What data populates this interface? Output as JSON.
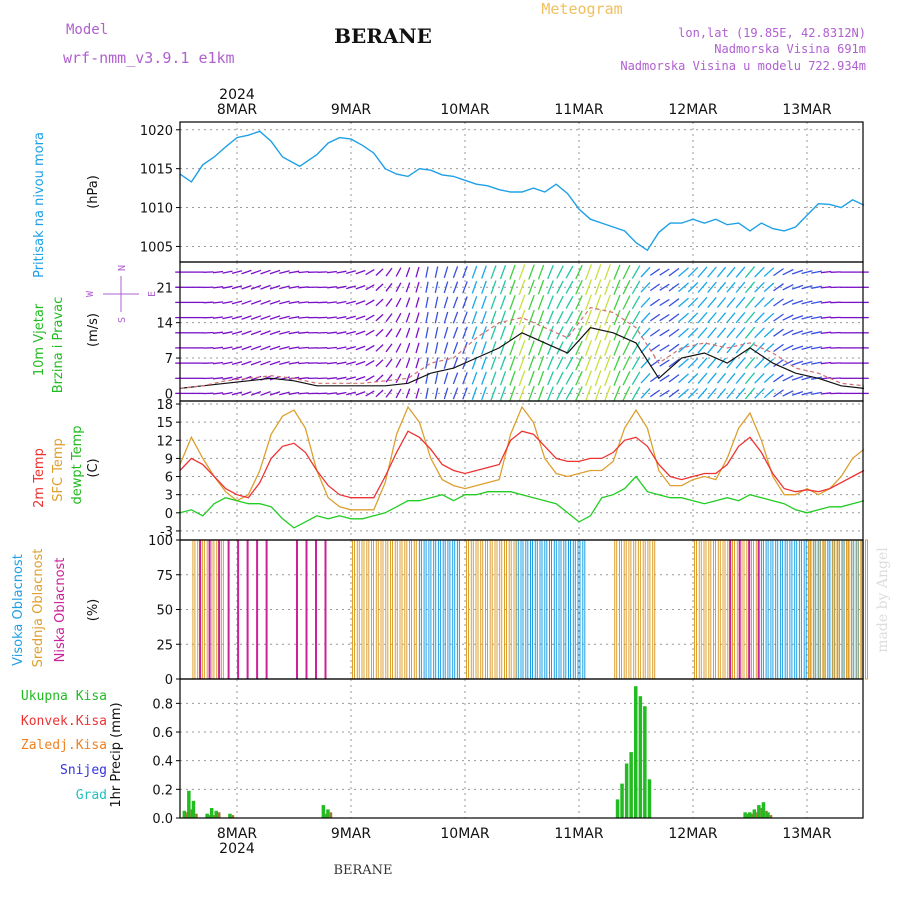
{
  "header": {
    "model_label": "Model",
    "model_name": "wrf-nmm_v3.9.1 e1km",
    "title": "BERANE",
    "product": "Meteogram",
    "coords": "lon,lat (19.85E, 42.8312N)",
    "elevation": "Nadmorska Visina 691m",
    "model_elevation": "Nadmorska Visina u modelu 722.934m"
  },
  "time_axis": {
    "year": "2024",
    "days": [
      "8MAR",
      "9MAR",
      "10MAR",
      "11MAR",
      "12MAR",
      "13MAR"
    ]
  },
  "footer": {
    "station": "BERANE",
    "watermark": "made by Angel"
  },
  "colors": {
    "pressure": "#1ea0e6",
    "temp2m": "#ee3333",
    "sfc": "#dda030",
    "dewpt": "#22cc22",
    "high_cloud": "#1ea0e6",
    "mid_cloud": "#dda030",
    "low_cloud": "#cc2299",
    "ukupna": "#22bb22",
    "konvek": "#ee3333",
    "zaledj": "#f08020",
    "snijeg": "#3333dd",
    "grad": "#22c0c0",
    "wind_label": "#22bb22",
    "wind_sub": "#b060d0"
  },
  "panels": {
    "pressure": {
      "label": "Pritisak na nivou mora",
      "unit": "(hPa)"
    },
    "wind": {
      "label1": "10m Vjetar",
      "label2": "Brzina i Pravac",
      "unit": "(m/s)",
      "compass": {
        "n": "N",
        "s": "S",
        "w": "W",
        "e": "E"
      }
    },
    "temp": {
      "l1": "2m Temp",
      "l2": "SFC Temp",
      "l3": "dewpt Temp",
      "unit": "(C)"
    },
    "cloud": {
      "l1": "Visoka Oblacnost",
      "l2": "Srednja Oblacnost",
      "l3": "Niska Oblacnost",
      "unit": "(%)"
    },
    "precip": {
      "unit": "1hr Precip (mm)",
      "legend": [
        "Ukupna Kisa",
        "Konvek.Kisa",
        "Zaledj.Kisa",
        "Snijeg",
        "Grad"
      ]
    }
  },
  "chart_data": [
    {
      "type": "line",
      "name": "pressure",
      "ylabel": "(hPa)",
      "ylim": [
        1003,
        1021
      ],
      "yticks": [
        1005,
        1010,
        1015,
        1020
      ],
      "x_days": [
        -0.5,
        -0.4,
        -0.3,
        -0.2,
        -0.1,
        0.0,
        0.1,
        0.2,
        0.3,
        0.4,
        0.55,
        0.7,
        0.8,
        0.9,
        1.0,
        1.1,
        1.2,
        1.3,
        1.4,
        1.5,
        1.6,
        1.7,
        1.8,
        1.9,
        2.0,
        2.1,
        2.2,
        2.3,
        2.4,
        2.5,
        2.6,
        2.7,
        2.8,
        2.9,
        3.0,
        3.1,
        3.2,
        3.3,
        3.4,
        3.5,
        3.6,
        3.7,
        3.8,
        3.9,
        4.0,
        4.1,
        4.2,
        4.3,
        4.4,
        4.5,
        4.6,
        4.7,
        4.8,
        4.9,
        5.0,
        5.1,
        5.2,
        5.3,
        5.4,
        5.5
      ],
      "y": [
        1014.3,
        1013.3,
        1015.5,
        1016.5,
        1017.8,
        1019.0,
        1019.3,
        1019.8,
        1018.5,
        1016.5,
        1015.3,
        1016.8,
        1018.3,
        1019.0,
        1018.8,
        1018.0,
        1017.0,
        1015.0,
        1014.3,
        1014.0,
        1015.0,
        1014.8,
        1014.2,
        1014.0,
        1013.5,
        1013.0,
        1012.8,
        1012.3,
        1012.0,
        1012.0,
        1012.5,
        1012.0,
        1013.0,
        1011.8,
        1009.8,
        1008.5,
        1008.0,
        1007.5,
        1007.0,
        1005.5,
        1004.5,
        1006.8,
        1008.0,
        1008.0,
        1008.5,
        1008.0,
        1008.5,
        1007.8,
        1008.0,
        1007.0,
        1008.0,
        1007.3,
        1007.0,
        1007.5,
        1009.0,
        1010.5,
        1010.4,
        1010.0,
        1011.0,
        1010.3
      ]
    },
    {
      "type": "line",
      "name": "wind",
      "ylabel": "(m/s)",
      "ylim": [
        -1.5,
        26
      ],
      "yticks": [
        0,
        7,
        14,
        21
      ],
      "x_days": [
        -0.5,
        -0.3,
        -0.1,
        0.1,
        0.3,
        0.5,
        0.7,
        0.9,
        1.1,
        1.3,
        1.5,
        1.7,
        1.9,
        2.1,
        2.3,
        2.5,
        2.7,
        2.9,
        3.1,
        3.3,
        3.5,
        3.7,
        3.9,
        4.1,
        4.3,
        4.5,
        4.7,
        4.9,
        5.1,
        5.3,
        5.5
      ],
      "speed": [
        1.0,
        1.5,
        2.0,
        2.5,
        3.0,
        2.5,
        1.5,
        1.5,
        1.5,
        1.5,
        2.0,
        4.0,
        5.0,
        7.0,
        9.0,
        12.0,
        10.0,
        8.0,
        13.0,
        12.0,
        10.0,
        3.0,
        7.0,
        8.0,
        6.0,
        9.0,
        6.0,
        4.0,
        3.0,
        1.5,
        1.0
      ],
      "gust": [
        1.0,
        1.5,
        2.5,
        3.0,
        3.5,
        3.0,
        2.0,
        2.0,
        2.0,
        2.5,
        3.0,
        6.0,
        7.0,
        11.0,
        14.0,
        15.0,
        13.0,
        11.0,
        17.0,
        16.0,
        13.0,
        6.0,
        9.0,
        10.0,
        9.0,
        10.0,
        8.0,
        5.0,
        4.0,
        2.0,
        1.5
      ],
      "direction_deg": [
        270,
        270,
        260,
        250,
        250,
        260,
        270,
        260,
        250,
        220,
        200,
        190,
        200,
        200,
        200,
        200,
        200,
        210,
        200,
        200,
        210,
        240,
        230,
        220,
        220,
        220,
        230,
        250,
        260,
        270,
        270
      ]
    },
    {
      "type": "line",
      "name": "temperature",
      "ylabel": "(C)",
      "ylim": [
        -4.5,
        18.5
      ],
      "yticks": [
        -3,
        0,
        3,
        6,
        9,
        12,
        15,
        18
      ],
      "x_days": [
        -0.5,
        -0.4,
        -0.3,
        -0.2,
        -0.1,
        0.0,
        0.1,
        0.2,
        0.3,
        0.4,
        0.5,
        0.6,
        0.7,
        0.8,
        0.9,
        1.0,
        1.1,
        1.2,
        1.3,
        1.4,
        1.5,
        1.6,
        1.7,
        1.8,
        1.9,
        2.0,
        2.1,
        2.2,
        2.3,
        2.4,
        2.5,
        2.6,
        2.7,
        2.8,
        2.9,
        3.0,
        3.1,
        3.2,
        3.3,
        3.4,
        3.5,
        3.6,
        3.7,
        3.8,
        3.9,
        4.0,
        4.1,
        4.2,
        4.3,
        4.4,
        4.5,
        4.6,
        4.7,
        4.8,
        4.9,
        5.0,
        5.1,
        5.2,
        5.3,
        5.4,
        5.5
      ],
      "t2m": [
        7.0,
        9.0,
        8.0,
        6.0,
        4.0,
        3.0,
        2.5,
        5.0,
        9.0,
        11.0,
        11.5,
        10.0,
        7.0,
        4.5,
        3.0,
        2.5,
        2.5,
        2.5,
        6.0,
        10.0,
        13.5,
        12.5,
        10.5,
        8.0,
        7.0,
        6.5,
        7.0,
        7.5,
        8.0,
        12.0,
        13.5,
        13.0,
        11.0,
        9.0,
        8.5,
        8.5,
        9.0,
        9.0,
        10.0,
        12.0,
        12.5,
        11.0,
        8.0,
        6.0,
        5.5,
        6.0,
        6.5,
        6.5,
        8.0,
        11.0,
        12.5,
        10.0,
        6.5,
        4.0,
        3.5,
        3.8,
        3.5,
        4.0,
        5.0,
        6.0,
        7.0
      ],
      "sfc": [
        8.0,
        12.5,
        9.0,
        6.0,
        3.5,
        2.0,
        3.0,
        7.0,
        13.0,
        16.0,
        17.0,
        14.0,
        7.0,
        2.5,
        1.0,
        0.5,
        0.5,
        0.5,
        5.0,
        13.0,
        17.5,
        15.0,
        9.0,
        5.5,
        4.5,
        4.0,
        4.5,
        5.0,
        5.5,
        13.0,
        17.5,
        15.0,
        9.0,
        6.5,
        6.0,
        6.5,
        7.0,
        7.0,
        8.5,
        14.0,
        17.0,
        14.0,
        7.0,
        4.5,
        4.5,
        5.5,
        6.0,
        5.5,
        9.0,
        14.0,
        16.5,
        12.0,
        6.0,
        3.0,
        3.0,
        4.0,
        3.0,
        4.0,
        6.0,
        9.0,
        10.5
      ],
      "dewpt": [
        0.0,
        0.5,
        -0.5,
        1.5,
        2.5,
        2.0,
        1.5,
        1.5,
        1.0,
        -1.0,
        -2.5,
        -1.5,
        -0.5,
        -1.0,
        -0.5,
        -1.0,
        -1.0,
        -0.5,
        0.0,
        1.0,
        2.0,
        2.0,
        2.5,
        3.0,
        2.0,
        3.0,
        3.0,
        3.5,
        3.5,
        3.5,
        3.0,
        2.5,
        2.0,
        1.5,
        0.0,
        -1.5,
        -0.5,
        2.5,
        3.0,
        4.0,
        6.0,
        3.5,
        3.0,
        2.5,
        2.5,
        2.0,
        1.5,
        2.0,
        2.5,
        2.0,
        3.0,
        2.5,
        2.0,
        1.5,
        0.5,
        0.0,
        0.5,
        1.0,
        1.0,
        1.5,
        2.0
      ]
    },
    {
      "type": "bar",
      "name": "cloud_cover",
      "ylabel": "(%)",
      "ylim": [
        0,
        100
      ],
      "yticks": [
        0,
        25,
        50,
        75,
        100
      ],
      "high_spans_days": [
        [
          1.6,
          1.95
        ],
        [
          2.45,
          3.05
        ],
        [
          4.6,
          5.5
        ]
      ],
      "mid_spans_days": [
        [
          -0.4,
          -0.15
        ],
        [
          1.0,
          1.55
        ],
        [
          2.0,
          2.45
        ],
        [
          3.3,
          3.65
        ],
        [
          4.0,
          4.55
        ],
        [
          5.0,
          5.5
        ]
      ],
      "low_spans_days": [
        [
          -0.35,
          0.3
        ],
        [
          0.5,
          0.8
        ],
        [
          4.3,
          4.6
        ]
      ]
    },
    {
      "type": "bar",
      "name": "precip_1hr",
      "ylabel": "1hr Precip (mm)",
      "ylim": [
        0,
        0.97
      ],
      "yticks": [
        0,
        0.2,
        0.4,
        0.6,
        0.8
      ],
      "x_days": [
        -0.46,
        -0.42,
        -0.38,
        -0.26,
        -0.22,
        -0.18,
        -0.06,
        0.76,
        0.8,
        3.34,
        3.38,
        3.42,
        3.46,
        3.5,
        3.54,
        3.58,
        3.62,
        4.46,
        4.5,
        4.54,
        4.58,
        4.62,
        4.66
      ],
      "ukupna": [
        0.05,
        0.19,
        0.12,
        0.03,
        0.07,
        0.05,
        0.03,
        0.09,
        0.06,
        0.13,
        0.24,
        0.38,
        0.46,
        0.92,
        0.85,
        0.78,
        0.27,
        0.04,
        0.04,
        0.06,
        0.09,
        0.11,
        0.04
      ],
      "konvek": [
        0.04,
        0.06,
        0.03,
        0.02,
        0.02,
        0.04,
        0.02,
        0.03,
        0.04,
        0.0,
        0.0,
        0.0,
        0.0,
        0.0,
        0.0,
        0.0,
        0.0,
        0.03,
        0.03,
        0.04,
        0.07,
        0.05,
        0.02
      ]
    }
  ]
}
